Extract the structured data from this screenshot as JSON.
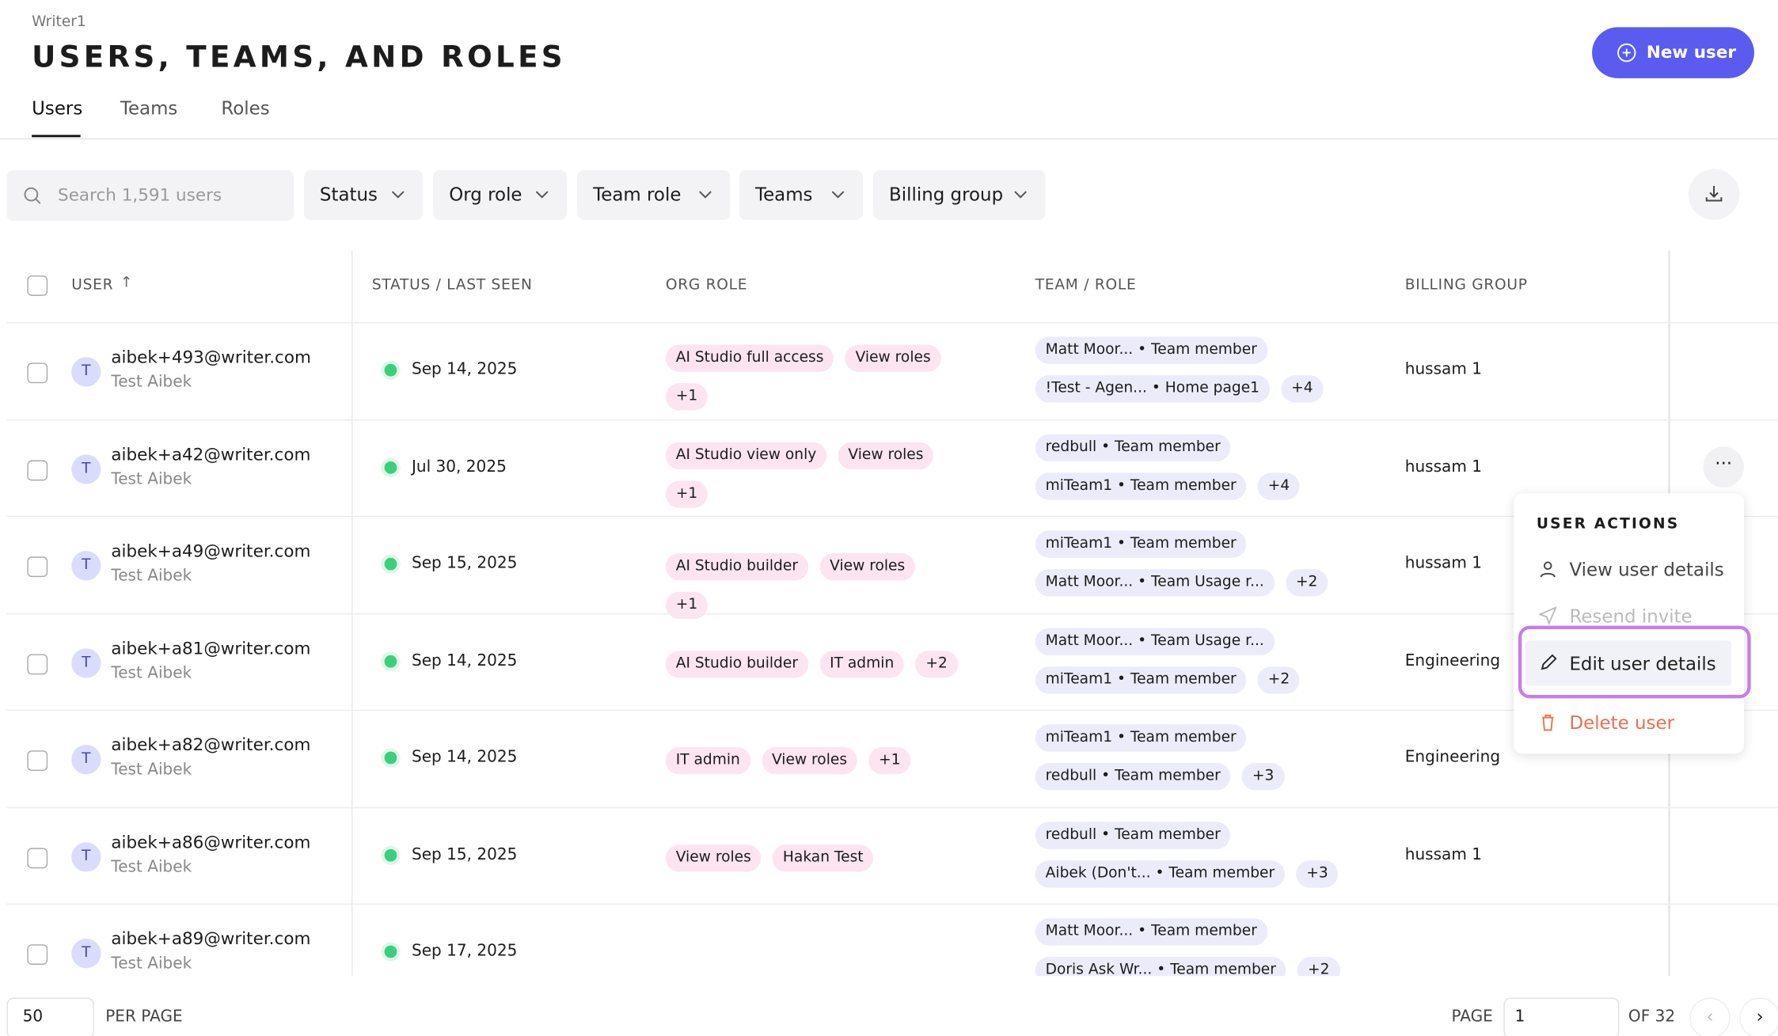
{
  "header": {
    "breadcrumb": "Writer1",
    "title": "USERS, TEAMS, AND ROLES",
    "new_user": "New user"
  },
  "tabs": [
    "Users",
    "Teams",
    "Roles"
  ],
  "filters": {
    "search": "Search 1,591 users",
    "dropdowns": [
      "Status",
      "Org role",
      "Team role",
      "Teams",
      "Billing group"
    ]
  },
  "table": {
    "columns": [
      "USER",
      "STATUS / LAST SEEN",
      "ORG ROLE",
      "TEAM / ROLE",
      "BILLING GROUP"
    ],
    "rows": [
      {
        "avatar": "T",
        "email": "aibek+493@writer.com",
        "name": "Test Aibek",
        "last_seen": "Sep 14, 2025",
        "org_roles": [
          "AI Studio full access",
          "View roles",
          "+1"
        ],
        "teams": [
          "Matt Moor... • Team member",
          "!Test - Agen... • Home page1"
        ],
        "teams_more": "+4",
        "billing": "hussam 1"
      },
      {
        "avatar": "T",
        "email": "aibek+a42@writer.com",
        "name": "Test Aibek",
        "last_seen": "Jul 30, 2025",
        "org_roles": [
          "AI Studio view only",
          "View roles",
          "+1"
        ],
        "teams": [
          "redbull • Team member",
          "miTeam1 • Team member"
        ],
        "teams_more": "+4",
        "billing": "hussam 1"
      },
      {
        "avatar": "T",
        "email": "aibek+a49@writer.com",
        "name": "Test Aibek",
        "last_seen": "Sep 15, 2025",
        "org_roles": [
          "AI Studio builder",
          "View roles",
          "+1"
        ],
        "teams": [
          "miTeam1 • Team member",
          "Matt Moor... • Team Usage r..."
        ],
        "teams_more": "+2",
        "billing": "hussam 1"
      },
      {
        "avatar": "T",
        "email": "aibek+a81@writer.com",
        "name": "Test Aibek",
        "last_seen": "Sep 14, 2025",
        "org_roles": [
          "AI Studio builder",
          "IT admin",
          "+2"
        ],
        "teams": [
          "Matt Moor... • Team Usage r...",
          "miTeam1 • Team member"
        ],
        "teams_more": "+2",
        "billing": "Engineering"
      },
      {
        "avatar": "T",
        "email": "aibek+a82@writer.com",
        "name": "Test Aibek",
        "last_seen": "Sep 14, 2025",
        "org_roles": [
          "IT admin",
          "View roles",
          "+1"
        ],
        "teams": [
          "miTeam1 • Team member",
          "redbull • Team member"
        ],
        "teams_more": "+3",
        "billing": "Engineering"
      },
      {
        "avatar": "T",
        "email": "aibek+a86@writer.com",
        "name": "Test Aibek",
        "last_seen": "Sep 15, 2025",
        "org_roles": [
          "View roles",
          "Hakan Test"
        ],
        "teams": [
          "redbull • Team member",
          "Aibek (Don't... • Team member"
        ],
        "teams_more": "+3",
        "billing": "hussam 1"
      },
      {
        "avatar": "T",
        "email": "aibek+a89@writer.com",
        "name": "Test Aibek",
        "last_seen": "Sep 17, 2025",
        "org_roles": [],
        "teams": [
          "Matt Moor... • Team member",
          "Doris Ask Wr... • Team member"
        ],
        "teams_more": "+2",
        "billing": ""
      }
    ]
  },
  "menu": {
    "title": "USER ACTIONS",
    "items": [
      "View user details",
      "Resend invite",
      "Edit user details",
      "Delete user"
    ]
  },
  "pagination": {
    "per_page_value": "50",
    "per_page_label": "PER PAGE",
    "page_label": "PAGE",
    "page_value": "1",
    "of": "OF 32"
  }
}
